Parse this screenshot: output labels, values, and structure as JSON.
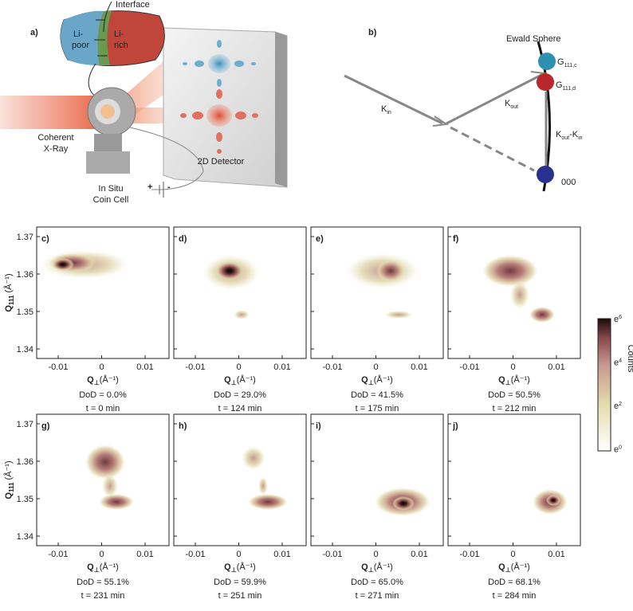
{
  "panel_a": {
    "label": "a)",
    "interface": "Interface",
    "li_poor": [
      "Li-",
      "poor"
    ],
    "li_rich": [
      "Li-",
      "rich"
    ],
    "source": [
      "Coherent",
      "X-Ray"
    ],
    "cell": [
      "In Situ",
      "Coin Cell"
    ],
    "detector": "2D Detector",
    "plus": "+",
    "minus": "-"
  },
  "panel_b": {
    "label": "b)",
    "sphere": "Ewald Sphere",
    "g_c": {
      "main": "G",
      "sub": "111,c"
    },
    "g_d": {
      "main": "G",
      "sub": "111,d"
    },
    "k_in": {
      "main": "K",
      "sub": "in"
    },
    "k_out": {
      "main": "K",
      "sub": "out"
    },
    "k_diff": {
      "m1": "K",
      "s1": "out",
      "mid": "-K",
      "s2": "in"
    },
    "origin": "000"
  },
  "axes": {
    "y_label": {
      "main": "Q",
      "sub": "111",
      "unit": " (Å⁻¹)"
    },
    "x_label": {
      "main": "Q",
      "sub": "⊥",
      "unit": "(Å⁻¹)"
    },
    "yticks": [
      "1.37",
      "1.36",
      "1.35",
      "1.34"
    ],
    "xticks": [
      "-0.01",
      "0",
      "0.01"
    ]
  },
  "panels": [
    {
      "label": "c)",
      "dod": "DoD = 0.0%",
      "time": "t = 0 min"
    },
    {
      "label": "d)",
      "dod": "DoD = 29.0%",
      "time": "t = 124 min"
    },
    {
      "label": "e)",
      "dod": "DoD = 41.5%",
      "time": "t = 175 min"
    },
    {
      "label": "f)",
      "dod": "DoD = 50.5%",
      "time": "t = 212 min"
    },
    {
      "label": "g)",
      "dod": "DoD = 55.1%",
      "time": "t = 231 min"
    },
    {
      "label": "h)",
      "dod": "DoD = 59.9%",
      "time": "t = 251 min"
    },
    {
      "label": "i)",
      "dod": "DoD = 65.0%",
      "time": "t = 271 min"
    },
    {
      "label": "j)",
      "dod": "DoD = 68.1%",
      "time": "t = 284 min"
    }
  ],
  "colorbar": {
    "title": "Counts",
    "ticks": [
      {
        "base": "e",
        "exp": "6"
      },
      {
        "base": "e",
        "exp": "4"
      },
      {
        "base": "e",
        "exp": "2"
      },
      {
        "base": "e",
        "exp": "0"
      }
    ]
  }
}
